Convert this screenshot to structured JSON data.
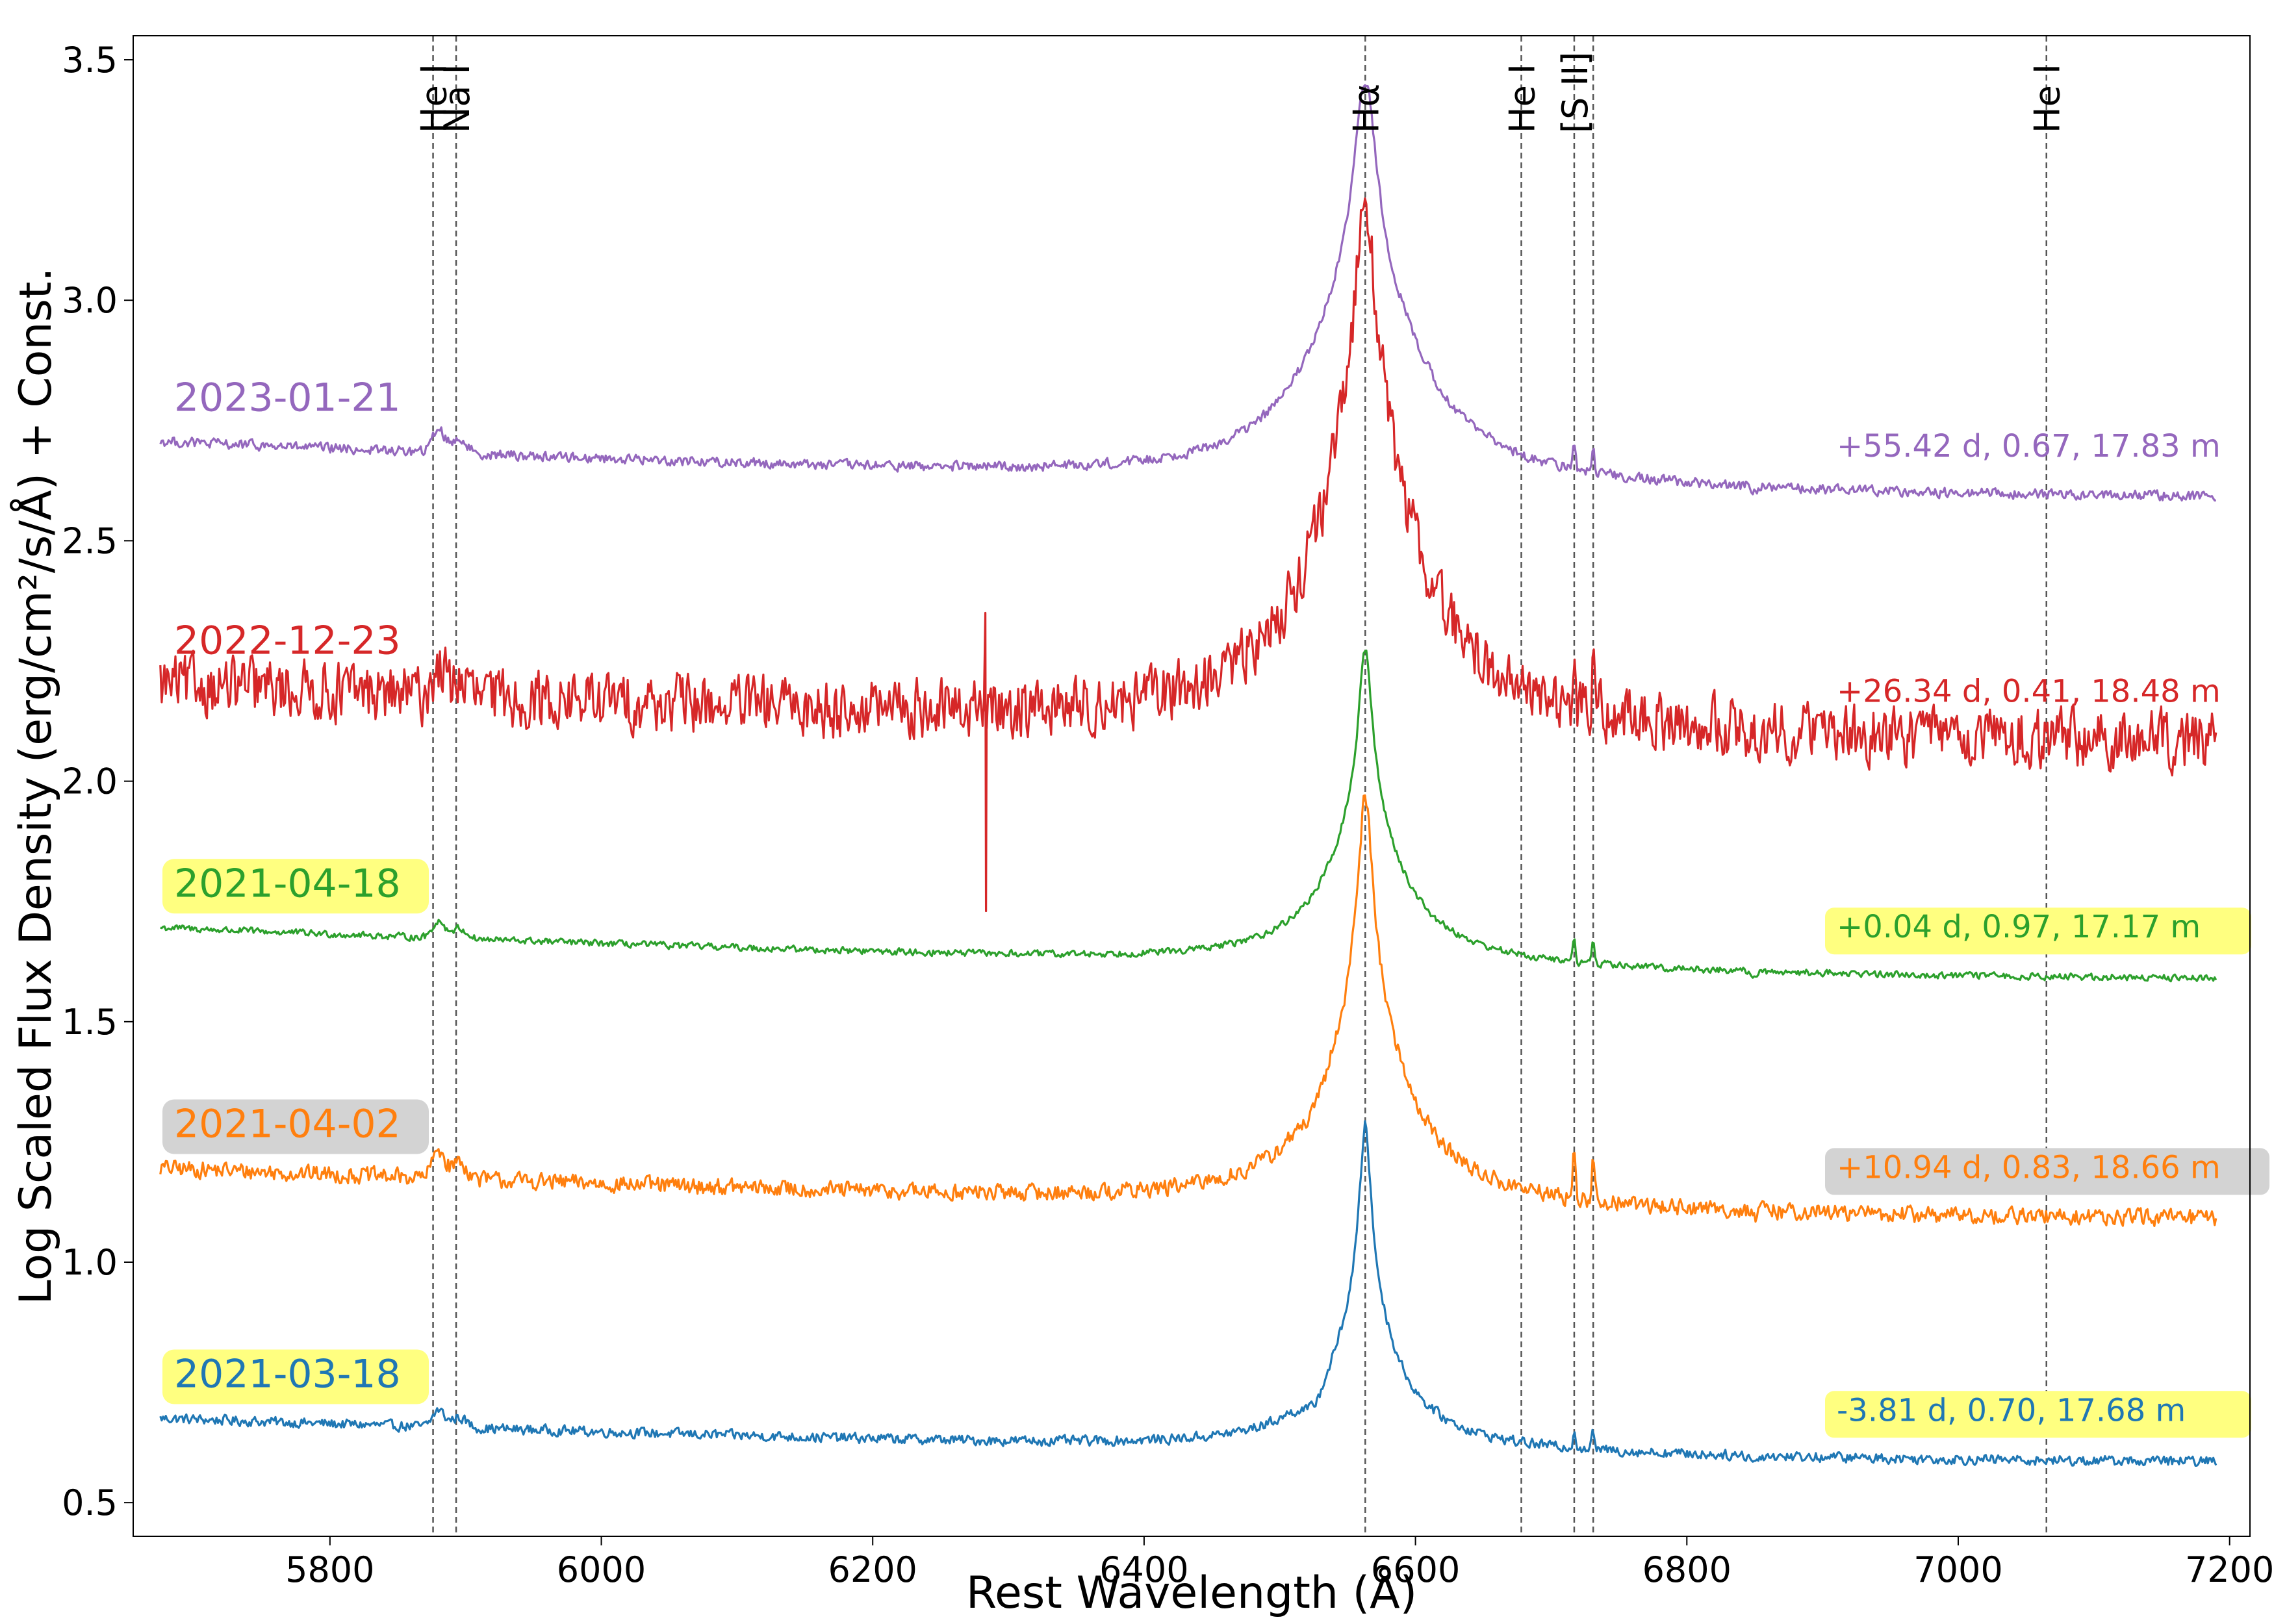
{
  "chart_data": {
    "type": "line",
    "xlabel": "Rest Wavelength (Å)",
    "ylabel": "Log Scaled Flux Density (erg/cm²/s/Å) + Const.",
    "xlim": [
      5655,
      7215
    ],
    "ylim": [
      0.43,
      3.55
    ],
    "xticks": [
      "5800",
      "6000",
      "6200",
      "6400",
      "6600",
      "6800",
      "7000",
      "7200"
    ],
    "yticks": [
      "0.5",
      "1.0",
      "1.5",
      "2.0",
      "2.5",
      "3.0",
      "3.5"
    ],
    "grid": false,
    "lines": [
      {
        "label": "He I",
        "x": 5876
      },
      {
        "label": "Na I",
        "x": 5893
      },
      {
        "label": "Hα",
        "x": 6563
      },
      {
        "label": "He I",
        "x": 6678
      },
      {
        "label": "[S II]",
        "x": 6717
      },
      {
        "label": "",
        "x": 6731
      },
      {
        "label": "He I",
        "x": 7065
      }
    ],
    "series": [
      {
        "name": "2021-03-18",
        "color": "#1f77b4",
        "info": "-3.81 d, 0.70, 17.68 m",
        "highlight": "#ffff80",
        "x_range": [
          5675,
          7190
        ],
        "base_start": 0.675,
        "base_end": 0.585,
        "noise": 0.006,
        "peak": 0.61,
        "peak_width": 10,
        "broad": 0.07,
        "na_bump": 0.035,
        "s2": 0.04,
        "trough_6510": 0.03
      },
      {
        "name": "2021-04-02",
        "color": "#ff7f0e",
        "info": "+10.94 d, 0.83, 18.66 m",
        "highlight": "#d3d3d3",
        "x_range": [
          5675,
          7190
        ],
        "base_start": 1.195,
        "base_end": 1.09,
        "noise": 0.01,
        "peak": 0.75,
        "peak_width": 14,
        "broad": 0.1,
        "na_bump": 0.06,
        "s2": 0.1,
        "trough_6510": 0.02
      },
      {
        "name": "2021-04-18",
        "color": "#2ca02c",
        "info": "+0.04 d, 0.97, 17.17 m",
        "highlight": "#ffff80",
        "x_range": [
          5675,
          7190
        ],
        "base_start": 1.695,
        "base_end": 1.59,
        "noise": 0.004,
        "peak": 0.58,
        "peak_width": 12,
        "broad": 0.08,
        "na_bump": 0.035,
        "s2": 0.05,
        "trough_6510": 0
      },
      {
        "name": "2022-12-23",
        "color": "#d62728",
        "info": "+26.34 d, 0.41, 18.48 m",
        "highlight": null,
        "x_range": [
          5675,
          7190
        ],
        "base_start": 2.2,
        "base_end": 2.08,
        "noise": 0.035,
        "peak": 0.92,
        "peak_width": 20,
        "broad": 0.18,
        "na_bump": 0.06,
        "s2": 0.13,
        "trough_6510": 0
      },
      {
        "name": "2023-01-21",
        "color": "#9467bd",
        "info": "+55.42 d, 0.67, 17.83 m",
        "highlight": null,
        "x_range": [
          5675,
          7190
        ],
        "base_start": 2.705,
        "base_end": 2.59,
        "noise": 0.006,
        "peak": 0.72,
        "peak_width": 20,
        "broad": 0.12,
        "na_bump": 0.05,
        "s2": 0.05,
        "trough_6510": 0
      }
    ]
  }
}
